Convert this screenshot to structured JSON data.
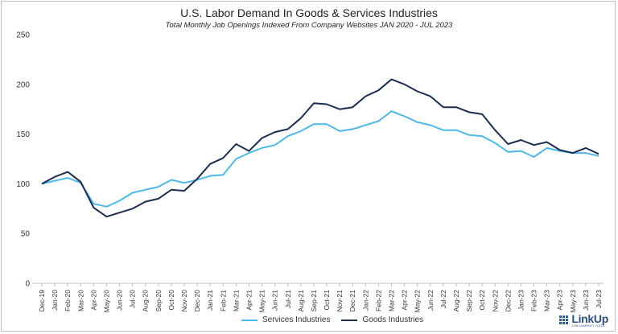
{
  "chart_data": {
    "type": "line",
    "title": "U.S. Labor Demand In Goods & Services Industries",
    "subtitle": "Total Monthly Job Openings Indexed From Company Websites JAN 2020 - JUL 2023",
    "xlabel": "",
    "ylabel": "",
    "ylim": [
      0,
      250
    ],
    "yticks": [
      0,
      50,
      100,
      150,
      200,
      250
    ],
    "grid": false,
    "legend": "bottom-center",
    "categories": [
      "Dec-19",
      "Jan-20",
      "Feb-20",
      "Mar-20",
      "Apr-20",
      "May-20",
      "Jun-20",
      "Jul-20",
      "Aug-20",
      "Sep-20",
      "Oct-20",
      "Nov-20",
      "Dec-20",
      "Jan-21",
      "Feb-21",
      "Mar-21",
      "Apr-21",
      "May-21",
      "Jun-21",
      "Jul-21",
      "Aug-21",
      "Sep-21",
      "Oct-21",
      "Nov-21",
      "Dec-21",
      "Jan-22",
      "Feb-22",
      "Mar-22",
      "Apr-22",
      "May-22",
      "Jun-22",
      "Jul-22",
      "Aug-22",
      "Sep-22",
      "Oct-22",
      "Nov-22",
      "Dec-22",
      "Jan-23",
      "Feb-23",
      "Mar-23",
      "Apr-23",
      "May-23",
      "Jun-23",
      "Jul-23"
    ],
    "series": [
      {
        "name": "Services Industries",
        "color": "#4db8ea",
        "values": [
          100,
          103,
          106,
          101,
          80,
          77,
          83,
          91,
          94,
          97,
          104,
          101,
          104,
          108,
          109,
          125,
          131,
          136,
          139,
          148,
          153,
          160,
          160,
          153,
          155,
          159,
          163,
          173,
          168,
          162,
          159,
          154,
          154,
          149,
          148,
          141,
          132,
          133,
          127,
          136,
          133,
          131,
          131,
          128
        ]
      },
      {
        "name": "Goods Industries",
        "color": "#1b2d52",
        "values": [
          100,
          107,
          112,
          102,
          76,
          67,
          71,
          75,
          82,
          85,
          94,
          93,
          105,
          120,
          126,
          140,
          133,
          146,
          152,
          155,
          166,
          181,
          180,
          175,
          177,
          188,
          194,
          205,
          200,
          193,
          188,
          177,
          177,
          172,
          170,
          154,
          140,
          144,
          139,
          142,
          134,
          131,
          136,
          130
        ]
      }
    ]
  },
  "legend": {
    "services_label": "Services Industries",
    "goods_label": "Goods Industries"
  },
  "logo": {
    "name": "LinkUp",
    "tagline": "JOB MARKET DATA",
    "color": "#2b4f8a"
  }
}
